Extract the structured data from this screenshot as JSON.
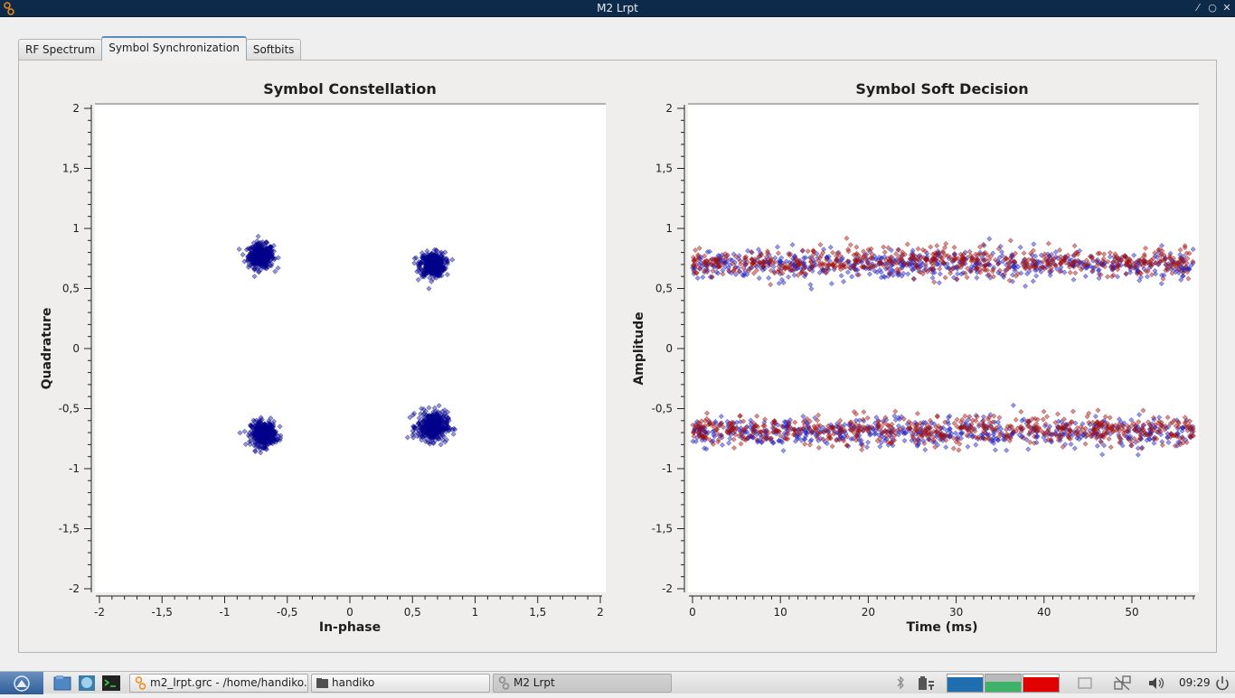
{
  "window": {
    "title": "M2 Lrpt"
  },
  "tabs": [
    {
      "label": "RF Spectrum",
      "active": false
    },
    {
      "label": "Symbol Synchronization",
      "active": true
    },
    {
      "label": "Softbits",
      "active": false
    }
  ],
  "chart_data": [
    {
      "type": "scatter",
      "title": "Symbol Constellation",
      "xlabel": "In-phase",
      "ylabel": "Quadrature",
      "xlim": [
        -2,
        2
      ],
      "ylim": [
        -2,
        2
      ],
      "xticks": [
        "-2",
        "-1,5",
        "-1",
        "-0,5",
        "0",
        "0,5",
        "1",
        "1,5",
        "2"
      ],
      "yticks": [
        "2",
        "1,5",
        "1",
        "0,5",
        "0",
        "-0,5",
        "-1",
        "-1,5",
        "-2"
      ],
      "series": [
        {
          "color": "#00008b",
          "clusters": [
            {
              "x": -0.71,
              "y": 0.77,
              "spread": 0.05
            },
            {
              "x": 0.66,
              "y": 0.7,
              "spread": 0.05
            },
            {
              "x": -0.69,
              "y": -0.71,
              "spread": 0.05
            },
            {
              "x": 0.66,
              "y": -0.65,
              "spread": 0.06
            }
          ]
        }
      ],
      "grid": false
    },
    {
      "type": "scatter",
      "title": "Symbol Soft Decision",
      "xlabel": "Time (ms)",
      "ylabel": "Amplitude",
      "xlim": [
        0,
        57
      ],
      "ylim": [
        -2,
        2
      ],
      "xticks": [
        "0",
        "10",
        "20",
        "30",
        "40",
        "50"
      ],
      "yticks": [
        "2",
        "1,5",
        "1",
        "0,5",
        "0",
        "-0,5",
        "-1",
        "-1,5",
        "-2"
      ],
      "series": [
        {
          "color": "#1f1fbf",
          "bands": [
            0.7,
            -0.7
          ],
          "spread": 0.06
        },
        {
          "color": "#a01010",
          "bands": [
            0.72,
            -0.68
          ],
          "spread": 0.06
        }
      ],
      "grid": false
    }
  ],
  "taskbar": {
    "items": [
      {
        "label": "m2_lrpt.grc - /home/handiko...",
        "active": false,
        "icon": "grc-icon"
      },
      {
        "label": "handiko",
        "active": false,
        "icon": "folder-icon"
      },
      {
        "label": "M2 Lrpt",
        "active": true,
        "icon": "grc-icon"
      }
    ],
    "clock": "09:29",
    "monitor_colors": [
      "#1f6fb0",
      "#3db36a",
      "#e00000"
    ]
  }
}
